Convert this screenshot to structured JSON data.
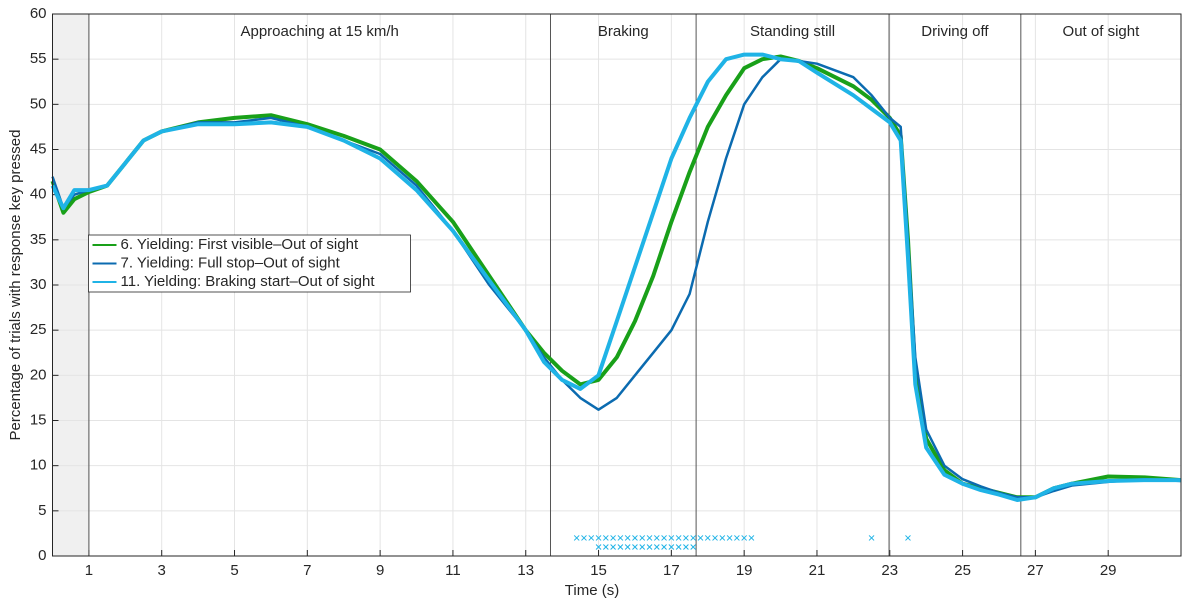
{
  "chart_data": {
    "type": "line",
    "xlabel": "Time (s)",
    "ylabel": "Percentage of trials with response key pressed",
    "x": [
      0,
      0.3,
      0.6,
      1,
      1.5,
      2,
      2.5,
      3,
      4,
      5,
      6,
      7,
      8,
      9,
      10,
      11,
      12,
      13,
      13.5,
      14,
      14.5,
      15,
      15.5,
      16,
      16.5,
      17,
      17.5,
      18,
      18.5,
      19,
      19.5,
      20,
      20.5,
      21,
      22,
      22.5,
      23,
      23.3,
      23.5,
      23.7,
      24,
      24.5,
      25,
      25.5,
      26,
      26.5,
      27,
      27.5,
      28,
      29,
      30,
      31
    ],
    "series": [
      {
        "name": "6. Yielding: First visible–Out of sight",
        "color": "#19a019",
        "width": 4,
        "values": [
          41.5,
          38,
          39.5,
          40.3,
          41,
          43.5,
          46,
          47,
          48,
          48.5,
          48.8,
          47.8,
          46.5,
          45,
          41.5,
          37,
          31,
          25,
          22.5,
          20.5,
          19,
          19.5,
          22,
          26,
          31,
          37,
          42.5,
          47.5,
          51,
          54,
          55,
          55.3,
          54.8,
          54,
          52,
          50.5,
          48.5,
          46.5,
          35,
          20,
          13,
          9.5,
          8,
          7.5,
          7,
          6.5,
          6.5,
          7.5,
          8,
          8.8,
          8.7,
          8.4
        ]
      },
      {
        "name": "7. Yielding: Full stop–Out of sight",
        "color": "#0b6bb0",
        "width": 2.5,
        "values": [
          42,
          38.5,
          40,
          40.5,
          41,
          43.5,
          46,
          47,
          48,
          48,
          48.5,
          47.5,
          46,
          44.5,
          41,
          36,
          30,
          25,
          22,
          19.5,
          17.5,
          16.2,
          17.5,
          20,
          22.5,
          25,
          29,
          37,
          44,
          50,
          53,
          55,
          54.8,
          54.5,
          53,
          51,
          48.5,
          47.5,
          35,
          22,
          14,
          10,
          8.5,
          7.7,
          7,
          6.5,
          6.5,
          7.2,
          7.8,
          8.2,
          8.5,
          8.3
        ]
      },
      {
        "name": "11. Yielding: Braking start–Out of sight",
        "color": "#1fb3e6",
        "width": 4,
        "values": [
          41,
          38.5,
          40.5,
          40.5,
          41,
          43.5,
          46,
          47,
          47.8,
          47.8,
          48,
          47.5,
          46,
          44,
          40.5,
          36,
          30.5,
          25,
          21.5,
          19.5,
          18.5,
          20,
          26,
          32,
          38,
          44,
          48.5,
          52.5,
          55,
          55.5,
          55.5,
          55,
          54.8,
          53.5,
          51,
          49.5,
          48,
          46,
          33,
          19,
          12,
          9,
          8,
          7.3,
          6.8,
          6.2,
          6.5,
          7.5,
          8,
          8.3,
          8.4,
          8.4
        ]
      }
    ],
    "phases": [
      {
        "label": "Approaching at 15 km/h",
        "start": 1
      },
      {
        "label": "Braking",
        "start": 13.68
      },
      {
        "label": "Standing still",
        "start": 17.68
      },
      {
        "label": "Driving off",
        "start": 22.98
      },
      {
        "label": "Out of sight",
        "start": 26.6
      }
    ],
    "shaded_region": [
      0,
      1
    ],
    "significance": [
      {
        "y": 2,
        "x": [
          14.4,
          14.6,
          14.8,
          15,
          15.2,
          15.4,
          15.6,
          15.8,
          16,
          16.2,
          16.4,
          16.6,
          16.8,
          17,
          17.2,
          17.4,
          17.6,
          17.8,
          18,
          18.2,
          18.4,
          18.6,
          18.8,
          19,
          19.2,
          22.5,
          23.5
        ]
      },
      {
        "y": 1,
        "x": [
          15,
          15.2,
          15.4,
          15.6,
          15.8,
          16,
          16.2,
          16.4,
          16.6,
          16.8,
          17,
          17.2,
          17.4,
          17.6
        ]
      }
    ],
    "significance_color": "#1fb3e6",
    "xlim": [
      0,
      31
    ],
    "ylim": [
      0,
      60
    ],
    "xticks": [
      1,
      3,
      5,
      7,
      9,
      11,
      13,
      15,
      17,
      19,
      21,
      23,
      25,
      27,
      29
    ],
    "yticks": [
      0,
      5,
      10,
      15,
      20,
      25,
      30,
      35,
      40,
      45,
      50,
      55,
      60
    ],
    "grid": true,
    "legend": "left"
  }
}
